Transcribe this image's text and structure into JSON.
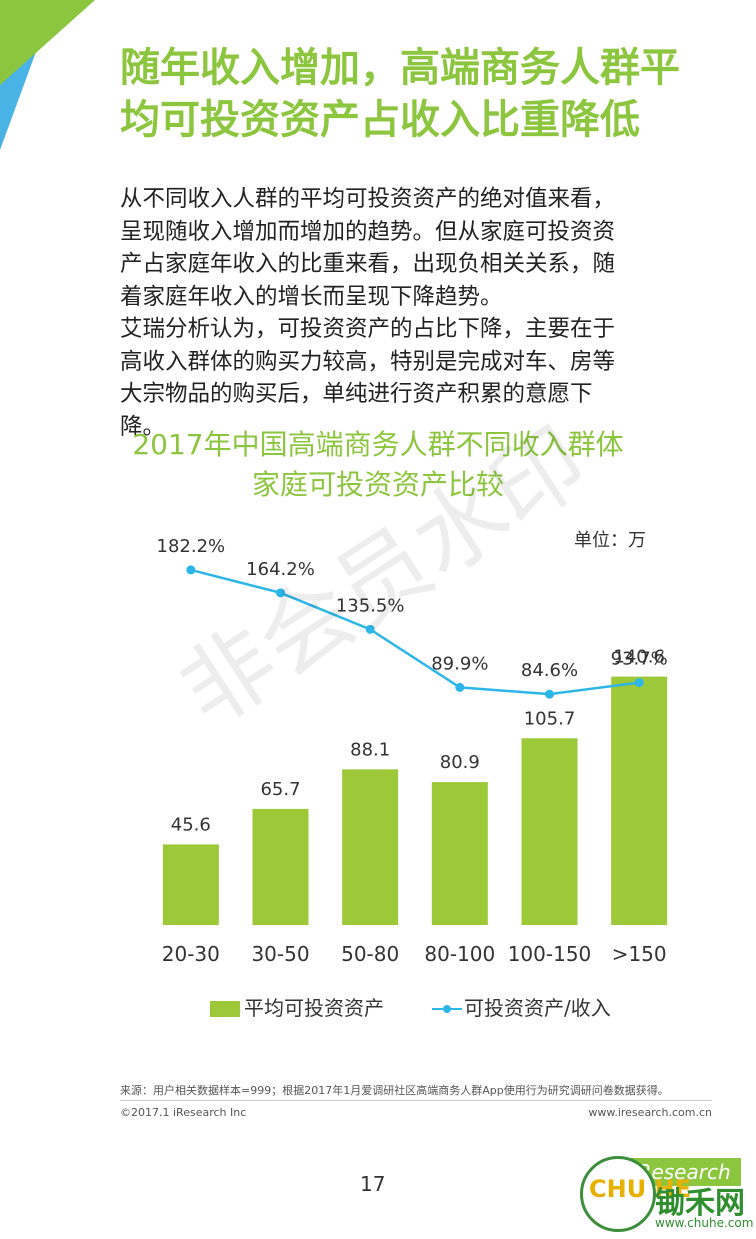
{
  "page": {
    "title_lines": [
      "随年收入增加，高端商务人群平",
      "均可投资资产占收入比重降低"
    ],
    "body_lines": [
      "从不同收入人群的平均可投资资产的绝对值来看，",
      "呈现随收入增加而增加的趋势。但从家庭可投资资",
      "产占家庭年收入的比重来看，出现负相关关系，随",
      "着家庭年收入的增长而呈现下降趋势。",
      "艾瑞分析认为，可投资资产的占比下降，主要在于",
      "高收入群体的购买力较高，特别是完成对车、房等",
      "大宗物品的购买后，单纯进行资产积累的意愿下",
      "降。"
    ],
    "watermark": "非会员水印",
    "source": "来源：用户相关数据样本=999；根据2017年1月爱调研社区高端商务人群App使用行为研究调研问卷数据获得。",
    "copyright": "©2017.1 iResearch Inc",
    "website": "www.iresearch.com.cn",
    "page_number": "17",
    "brand": "iResearch",
    "stamp_text": "CHU HE",
    "chuhe_name": "锄禾网",
    "chuhe_url": "www.chuhe.com"
  },
  "colors": {
    "accent": "#8cc63f",
    "bar": "#9dc837",
    "line": "#2db7e8",
    "corner_blue": "#4ab3e6",
    "corner_green": "#8cc63f"
  },
  "chart_data": {
    "type": "bar",
    "title_lines": [
      "2017年中国高端商务人群不同收入群体",
      "家庭可投资资产比较"
    ],
    "unit": "单位：万",
    "categories": [
      "20-30",
      "30-50",
      "50-80",
      "80-100",
      "100-150",
      ">150"
    ],
    "series": [
      {
        "name": "平均可投资资产",
        "type": "bar",
        "values": [
          45.6,
          65.7,
          88.1,
          80.9,
          105.7,
          140.6
        ],
        "labels": [
          "45.6",
          "65.7",
          "88.1",
          "80.9",
          "105.7",
          "140.6"
        ]
      },
      {
        "name": "可投资资产/收入",
        "type": "line",
        "values": [
          182.2,
          164.2,
          135.5,
          89.9,
          84.6,
          93.7
        ],
        "labels": [
          "182.2%",
          "164.2%",
          "135.5%",
          "89.9%",
          "84.6%",
          "93.7%"
        ]
      }
    ],
    "bar_range": [
      0,
      150
    ],
    "line_range": [
      0,
      200
    ],
    "legend_position": "bottom",
    "grid": false
  }
}
